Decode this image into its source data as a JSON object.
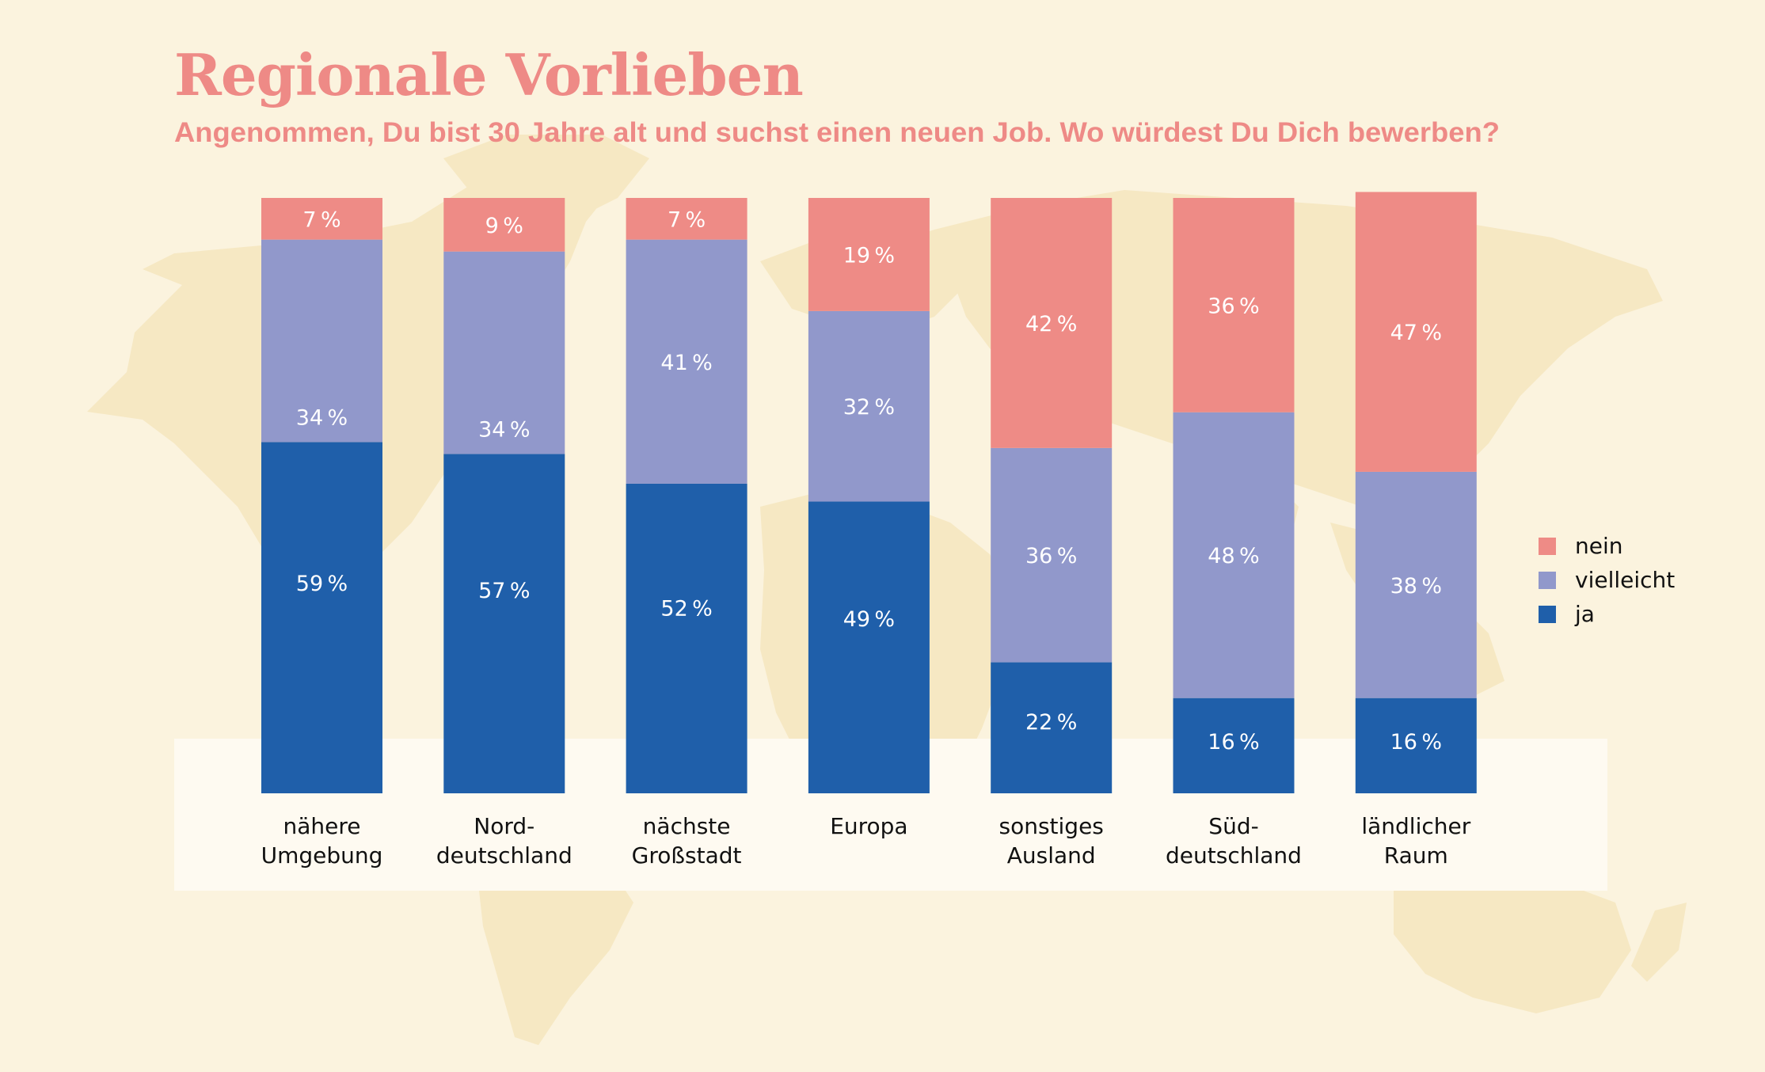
{
  "header": {
    "title": "Regionale Vorlieben",
    "subtitle": "Angenommen, Du bist 30 Jahre alt und suchst einen neuen Job. Wo würdest Du Dich bewerben?"
  },
  "colors": {
    "background": "#fbf3de",
    "map": "#f6e8c3",
    "band": "#fefaf1",
    "title": "#ee8a86",
    "nein": "#ee8b86",
    "vielleicht": "#9198cb",
    "ja": "#1f5faa"
  },
  "legend": [
    {
      "key": "nein",
      "label": "nein"
    },
    {
      "key": "vielleicht",
      "label": "vielleicht"
    },
    {
      "key": "ja",
      "label": "ja"
    }
  ],
  "chart_data": {
    "type": "bar",
    "stacked": true,
    "title": "Regionale Vorlieben",
    "subtitle": "Angenommen, Du bist 30 Jahre alt und suchst einen neuen Job. Wo würdest Du Dich bewerben?",
    "xlabel": "",
    "ylabel": "",
    "ylim": [
      0,
      100
    ],
    "unit": "%",
    "grid": false,
    "legend_position": "right",
    "categories": [
      [
        "nähere",
        "Umgebung"
      ],
      [
        "Nord-",
        "deutschland"
      ],
      [
        "nächste",
        "Großstadt"
      ],
      [
        "Europa"
      ],
      [
        "sonstiges",
        "Ausland"
      ],
      [
        "Süd-",
        "deutschland"
      ],
      [
        "ländlicher",
        "Raum"
      ]
    ],
    "series": [
      {
        "name": "ja",
        "values": [
          59,
          57,
          52,
          49,
          22,
          16,
          16
        ]
      },
      {
        "name": "vielleicht",
        "values": [
          34,
          34,
          41,
          32,
          36,
          48,
          38
        ]
      },
      {
        "name": "nein",
        "values": [
          7,
          9,
          7,
          19,
          42,
          36,
          47
        ]
      }
    ]
  }
}
